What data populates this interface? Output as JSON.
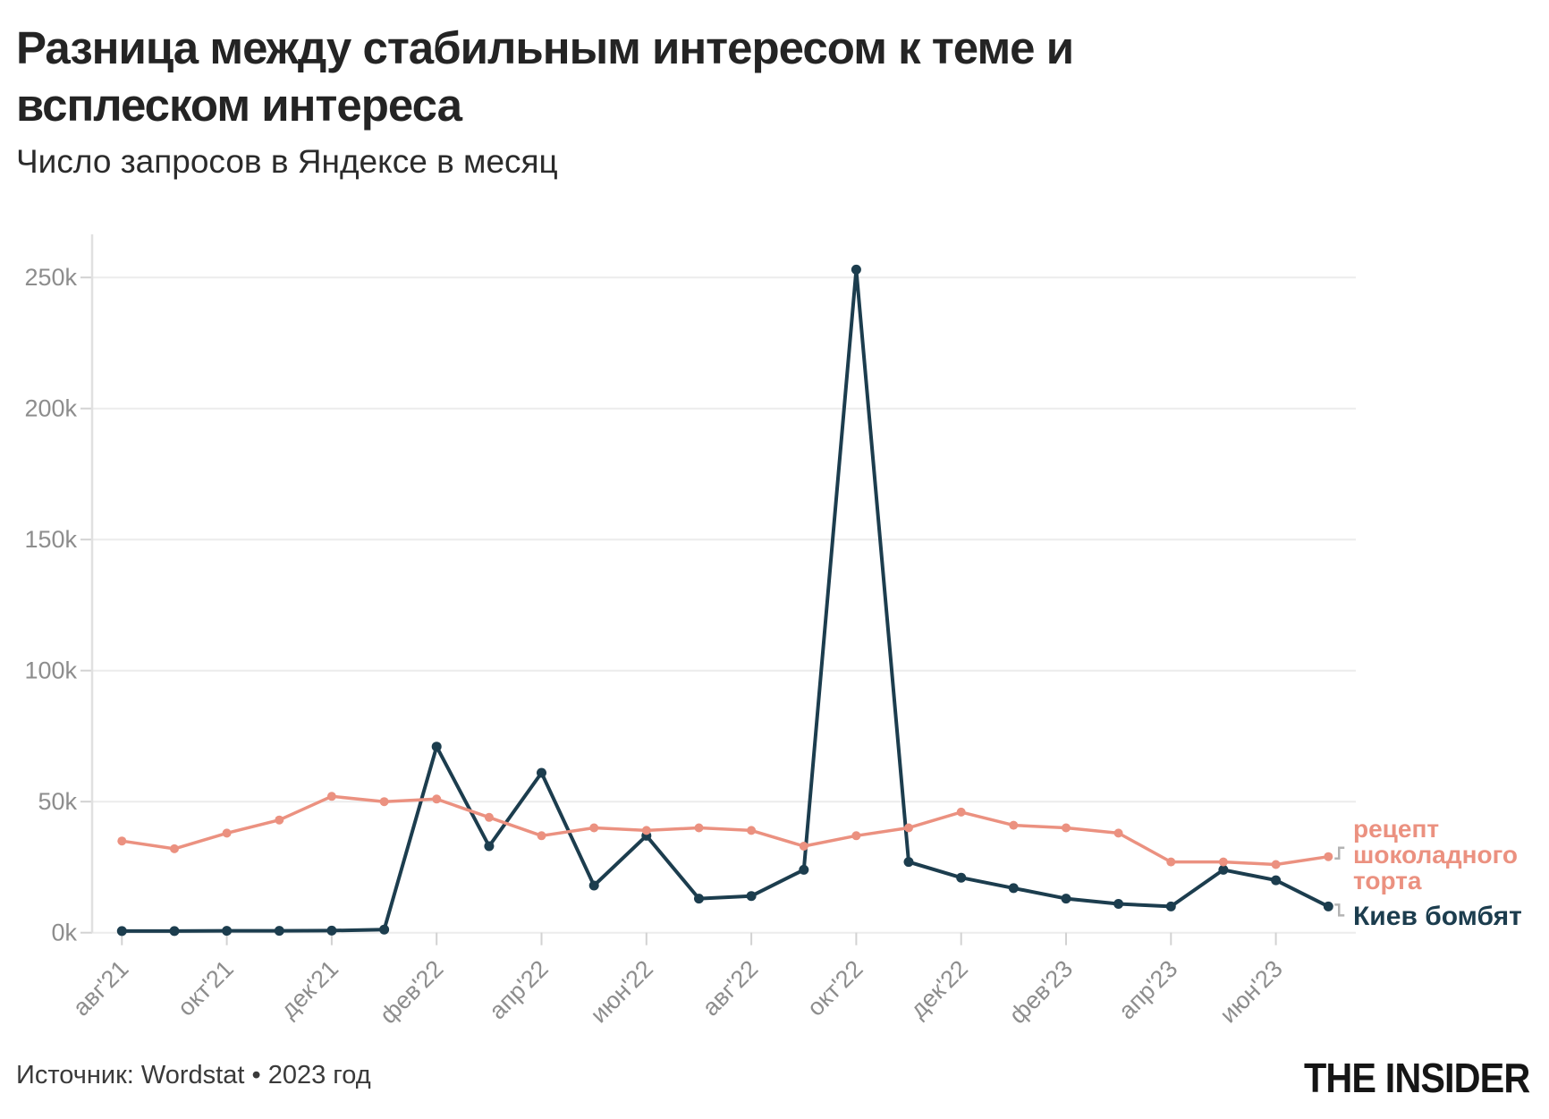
{
  "header": {
    "title_line1": "Разница между стабильным интересом к теме и",
    "title_line2": "всплеском интереса",
    "subtitle": "Число запросов в Яндексе в месяц"
  },
  "footer": {
    "source": "Источник: Wordstat • 2023 год",
    "logo": "THE INSIDER"
  },
  "colors": {
    "kyiv_series": "#1c3d4e",
    "cake_series": "#eb9180",
    "gridline": "#ececec",
    "axis_line": "#e0e0e0",
    "tick": "#d2d2d2",
    "tick_label": "#8d8d8d",
    "connector": "#b3b3b3"
  },
  "chart_data": {
    "type": "line",
    "title": "Разница между стабильным интересом к теме и всплеском интереса",
    "subtitle": "Число запросов в Яндексе в месяц",
    "x_start_label": "авг'21",
    "points_per_tick": 2,
    "x_tick_labels": [
      "авг'21",
      "окт'21",
      "дек'21",
      "фев'22",
      "апр'22",
      "июн'22",
      "авг'22",
      "окт'22",
      "дек'22",
      "фев'23",
      "апр'23",
      "июн'23"
    ],
    "y_ticks": [
      {
        "value": 0,
        "label": "0k"
      },
      {
        "value": 50000,
        "label": "50k"
      },
      {
        "value": 100000,
        "label": "100k"
      },
      {
        "value": 150000,
        "label": "150k"
      },
      {
        "value": 200000,
        "label": "200k"
      },
      {
        "value": 250000,
        "label": "250k"
      }
    ],
    "ylim": [
      0,
      267000
    ],
    "grid": true,
    "legend_position": "right-of-last-point",
    "series": [
      {
        "name": "Киев бомбят",
        "color": "#1c3d4e",
        "line_width": 4,
        "dot_radius": 5.5,
        "values": [
          600,
          600,
          700,
          700,
          800,
          1200,
          71000,
          33000,
          61000,
          18000,
          37000,
          13000,
          14000,
          24000,
          253000,
          27000,
          21000,
          17000,
          13000,
          11000,
          10000,
          24000,
          20000,
          10000
        ]
      },
      {
        "name": "рецепт шоколадного торта",
        "color": "#eb9180",
        "line_width": 3.5,
        "dot_radius": 5,
        "values": [
          35000,
          32000,
          38000,
          43000,
          52000,
          50000,
          51000,
          44000,
          37000,
          40000,
          39000,
          40000,
          39000,
          33000,
          37000,
          40000,
          46000,
          41000,
          40000,
          38000,
          27000,
          27000,
          26000,
          29000
        ]
      }
    ]
  }
}
